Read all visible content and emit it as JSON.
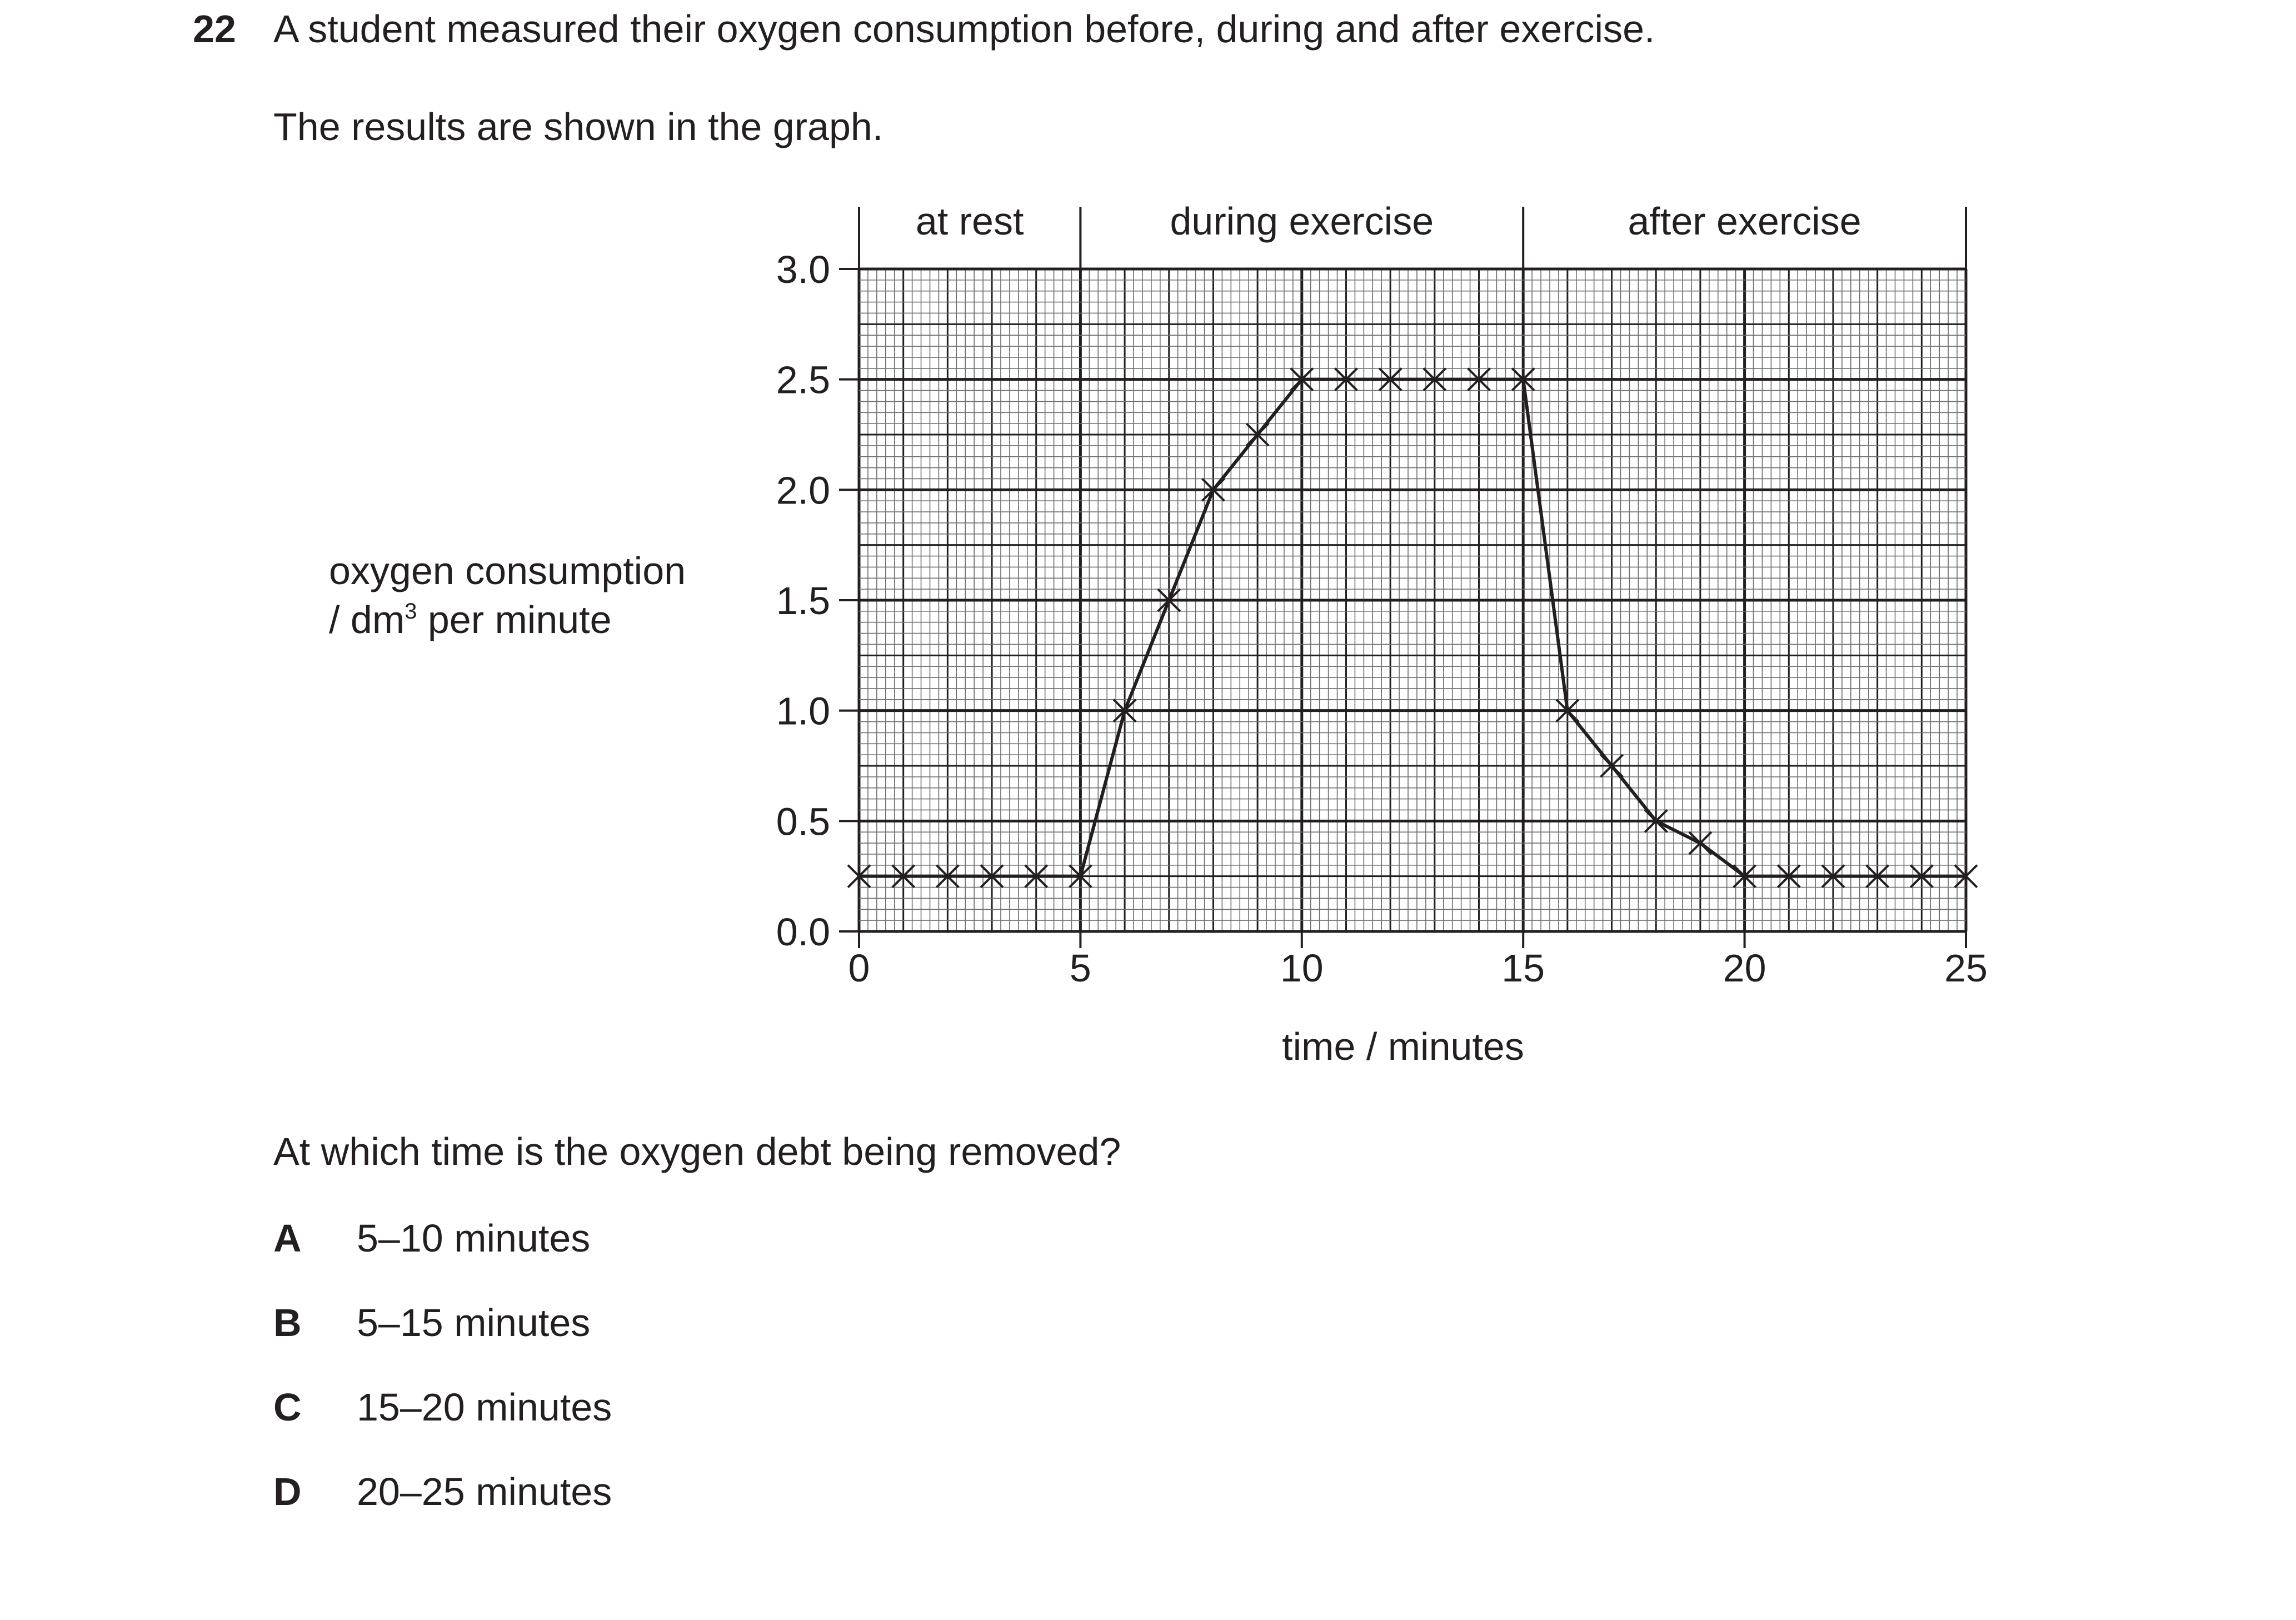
{
  "question": {
    "number": "22",
    "text": "A student measured their oxygen consumption before, during and after exercise.",
    "intro": "The results are shown in the graph.",
    "prompt": "At which time is the oxygen debt being removed?",
    "options": [
      {
        "letter": "A",
        "text": "5–10 minutes"
      },
      {
        "letter": "B",
        "text": "5–15 minutes"
      },
      {
        "letter": "C",
        "text": "15–20 minutes"
      },
      {
        "letter": "D",
        "text": "20–25 minutes"
      }
    ]
  },
  "chart_data": {
    "type": "line",
    "xlabel": "time / minutes",
    "ylabel_main": "oxygen consumption",
    "ylabel_unit_prefix": "/ dm",
    "ylabel_unit_sup": "3",
    "ylabel_unit_suffix": " per minute",
    "xlim": [
      0,
      25
    ],
    "ylim": [
      0,
      3.0
    ],
    "x_ticks": [
      0,
      5,
      10,
      15,
      20,
      25
    ],
    "x_tick_labels": [
      "0",
      "5",
      "10",
      "15",
      "20",
      "25"
    ],
    "y_ticks": [
      0,
      0.5,
      1.0,
      1.5,
      2.0,
      2.5,
      3.0
    ],
    "y_tick_labels": [
      "0.0",
      "0.5",
      "1.0",
      "1.5",
      "2.0",
      "2.5",
      "3.0"
    ],
    "grid": true,
    "marker": "x",
    "regions": [
      {
        "label": "at rest",
        "from": 0,
        "to": 5
      },
      {
        "label": "during exercise",
        "from": 5,
        "to": 15
      },
      {
        "label": "after exercise",
        "from": 15,
        "to": 25
      }
    ],
    "series": [
      {
        "x": [
          0,
          1,
          2,
          3,
          4,
          5,
          6,
          7,
          8,
          9,
          10,
          11,
          12,
          13,
          14,
          15,
          16,
          17,
          18,
          19,
          20,
          21,
          22,
          23,
          24,
          25
        ],
        "y": [
          0.25,
          0.25,
          0.25,
          0.25,
          0.25,
          0.25,
          1.0,
          1.5,
          2.0,
          2.25,
          2.5,
          2.5,
          2.5,
          2.5,
          2.5,
          2.5,
          1.0,
          0.75,
          0.5,
          0.4,
          0.25,
          0.25,
          0.25,
          0.25,
          0.25,
          0.25
        ]
      }
    ],
    "colors": {
      "ink": "#231f20",
      "grid_fine": "#6d6e71"
    }
  }
}
